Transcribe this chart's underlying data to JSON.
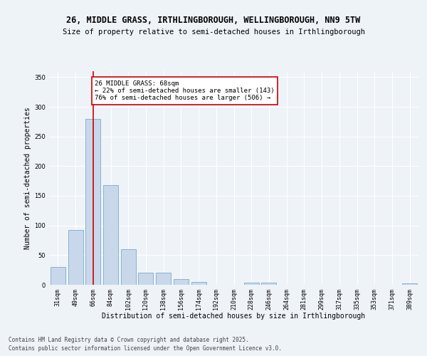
{
  "title_line1": "26, MIDDLE GRASS, IRTHLINGBOROUGH, WELLINGBOROUGH, NN9 5TW",
  "title_line2": "Size of property relative to semi-detached houses in Irthlingborough",
  "xlabel": "Distribution of semi-detached houses by size in Irthlingborough",
  "ylabel": "Number of semi-detached properties",
  "categories": [
    "31sqm",
    "49sqm",
    "66sqm",
    "84sqm",
    "102sqm",
    "120sqm",
    "138sqm",
    "156sqm",
    "174sqm",
    "192sqm",
    "210sqm",
    "228sqm",
    "246sqm",
    "264sqm",
    "281sqm",
    "299sqm",
    "317sqm",
    "335sqm",
    "353sqm",
    "371sqm",
    "389sqm"
  ],
  "values": [
    30,
    93,
    280,
    168,
    60,
    20,
    20,
    10,
    5,
    0,
    0,
    4,
    4,
    0,
    0,
    0,
    0,
    0,
    0,
    0,
    3
  ],
  "bar_color": "#c8d8ea",
  "bar_edge_color": "#7aaac8",
  "red_line_x": 2.0,
  "annotation_title": "26 MIDDLE GRASS: 68sqm",
  "annotation_line2": "← 22% of semi-detached houses are smaller (143)",
  "annotation_line3": "76% of semi-detached houses are larger (506) →",
  "annotation_box_color": "#ffffff",
  "annotation_box_edge": "#cc0000",
  "red_line_color": "#cc0000",
  "background_color": "#eef3f8",
  "plot_bg_color": "#eef3f8",
  "grid_color": "#ffffff",
  "ylim": [
    0,
    360
  ],
  "yticks": [
    0,
    50,
    100,
    150,
    200,
    250,
    300,
    350
  ],
  "footer_line1": "Contains HM Land Registry data © Crown copyright and database right 2025.",
  "footer_line2": "Contains public sector information licensed under the Open Government Licence v3.0.",
  "title_fontsize": 8.5,
  "subtitle_fontsize": 7.5,
  "axis_label_fontsize": 7,
  "tick_fontsize": 6,
  "annotation_fontsize": 6.5,
  "footer_fontsize": 5.5
}
